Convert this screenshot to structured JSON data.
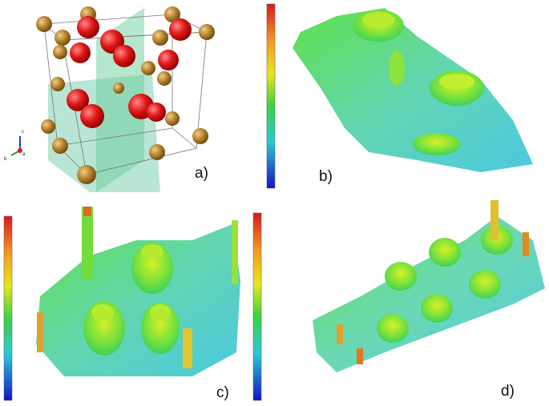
{
  "panels": [
    {
      "label": "a)"
    },
    {
      "label": "b)"
    },
    {
      "label": "c)"
    },
    {
      "label": "d)"
    }
  ],
  "crystal_axes": [
    "c",
    "b",
    "a"
  ]
}
